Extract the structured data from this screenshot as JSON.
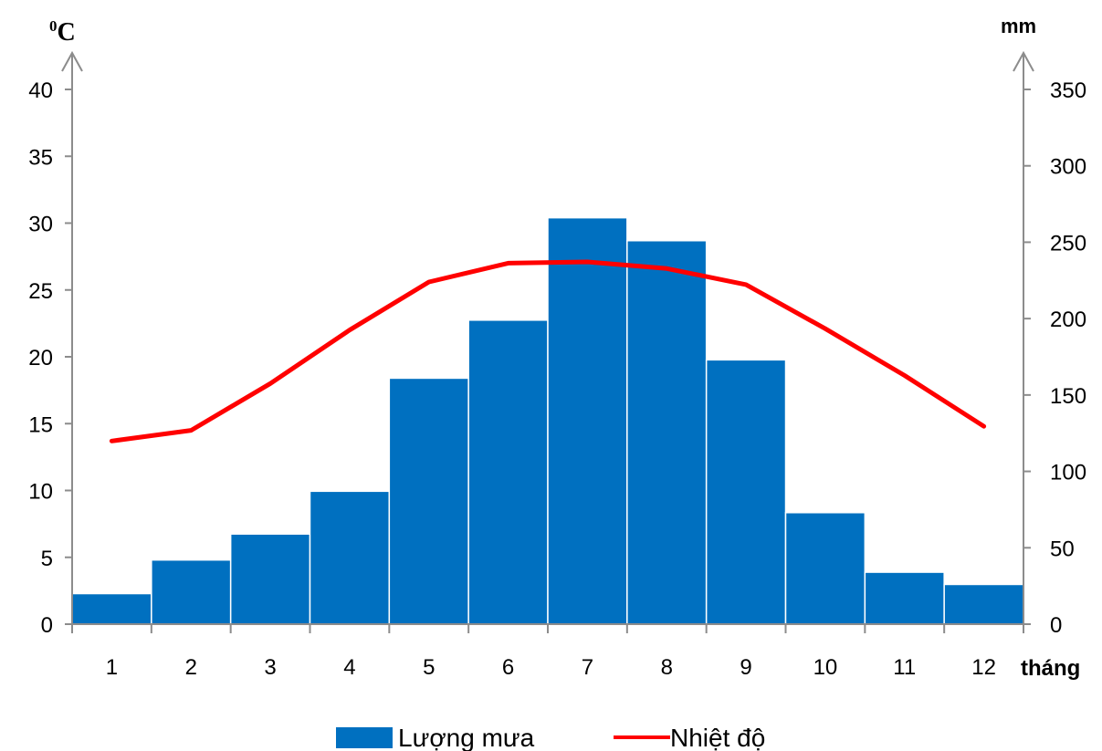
{
  "chart_data": {
    "type": "bar+line",
    "categories": [
      "1",
      "2",
      "3",
      "4",
      "5",
      "6",
      "7",
      "8",
      "9",
      "10",
      "11",
      "12"
    ],
    "series": [
      {
        "name": "Lượng mưa",
        "kind": "bar",
        "axis": "right",
        "color": "#0070C0",
        "values": [
          20,
          42,
          59,
          87,
          161,
          199,
          266,
          251,
          173,
          73,
          34,
          26
        ]
      },
      {
        "name": "Nhiệt độ",
        "kind": "line",
        "axis": "left",
        "color": "#FF0000",
        "values": [
          13.7,
          14.5,
          18,
          22,
          25.6,
          27,
          27.1,
          26.6,
          25.4,
          22.1,
          18.6,
          14.8
        ]
      }
    ],
    "left_axis": {
      "label": "0C",
      "label_sup": "0",
      "label_main": "C",
      "ylim": [
        0,
        40
      ],
      "ticks": [
        "0",
        "5",
        "10",
        "15",
        "20",
        "25",
        "30",
        "35",
        "40"
      ]
    },
    "right_axis": {
      "label": "mm",
      "ylim": [
        0,
        350
      ],
      "ticks": [
        "0",
        "50",
        "100",
        "150",
        "200",
        "250",
        "300",
        "350"
      ]
    },
    "xlabel": "tháng",
    "legend": {
      "position": "bottom",
      "items": [
        "Lượng mưa",
        "Nhiệt độ"
      ]
    },
    "grid": false
  }
}
